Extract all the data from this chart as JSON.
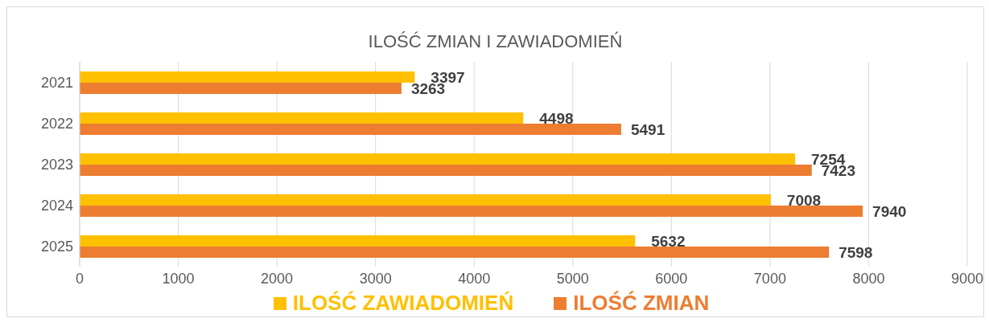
{
  "chart_data": {
    "type": "bar",
    "orientation": "horizontal",
    "title": "ILOŚĆ ZMIAN I ZAWIADOMIEŃ",
    "categories": [
      "2021",
      "2022",
      "2023",
      "2024",
      "2025"
    ],
    "series": [
      {
        "name": "ILOŚĆ ZAWIADOMIEŃ",
        "color": "#ffc000",
        "values": [
          3397,
          4498,
          7254,
          7008,
          5632
        ]
      },
      {
        "name": "ILOŚĆ ZMIAN",
        "color": "#ed7d31",
        "values": [
          3263,
          5491,
          7423,
          7940,
          7598
        ]
      }
    ],
    "xlim": [
      0,
      9000
    ],
    "xticks": [
      0,
      1000,
      2000,
      3000,
      4000,
      5000,
      6000,
      7000,
      8000,
      9000
    ],
    "grid": "x",
    "legend": "bottom",
    "data_labels": true
  }
}
